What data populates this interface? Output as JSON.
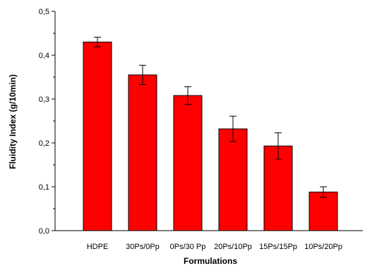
{
  "chart_data": {
    "type": "bar",
    "title": "",
    "xlabel": "Formulations",
    "ylabel": "Fluidity Index (g/10min)",
    "categories": [
      "HDPE",
      "30Ps/0Pp",
      "0Ps/30 Pp",
      "20Ps/10Pp",
      "15Ps/15Pp",
      "10Ps/20Pp"
    ],
    "values": [
      0.43,
      0.355,
      0.308,
      0.232,
      0.193,
      0.088
    ],
    "errors": [
      0.011,
      0.022,
      0.02,
      0.029,
      0.03,
      0.012
    ],
    "ylim": [
      0,
      0.5
    ],
    "yticks": [
      0,
      0.1,
      0.2,
      0.3,
      0.4,
      0.5
    ],
    "ytick_labels": [
      "0,0",
      "0,1",
      "0,2",
      "0,3",
      "0,4",
      "0,5"
    ],
    "bar_color": "#ff0000",
    "bar_edge_color": "#000000",
    "grid": false,
    "legend": "none"
  }
}
